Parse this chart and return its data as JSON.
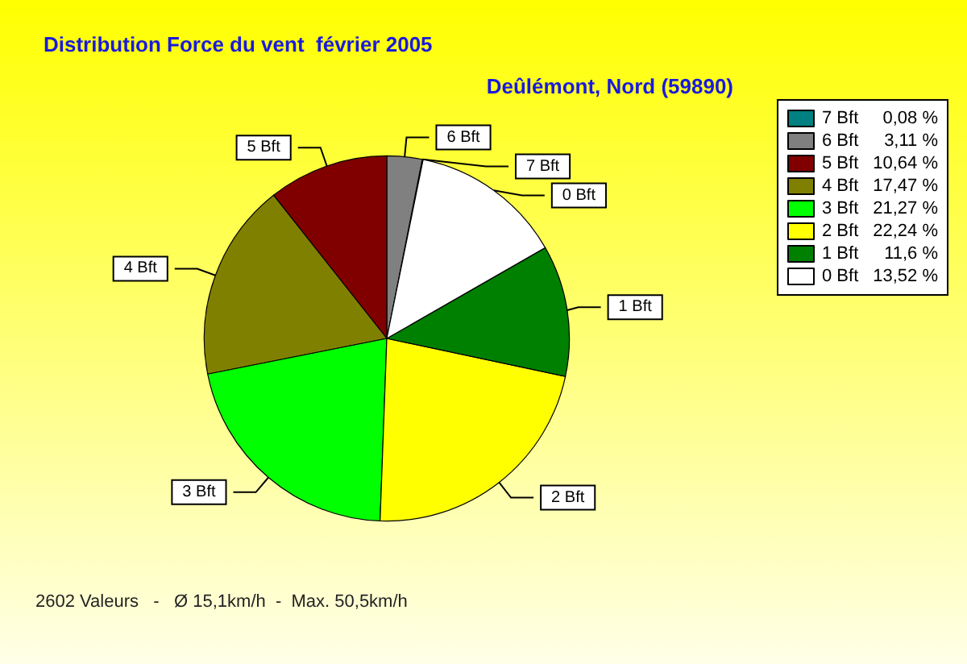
{
  "chart_data": {
    "type": "pie",
    "title": "Distribution Force du vent  février 2005",
    "subtitle": "Deûlémont, Nord (59890)",
    "categories": [
      "7 Bft",
      "6 Bft",
      "5 Bft",
      "4 Bft",
      "3 Bft",
      "2 Bft",
      "1 Bft",
      "0 Bft"
    ],
    "values": [
      0.08,
      3.11,
      10.64,
      17.47,
      21.27,
      22.24,
      11.6,
      13.52
    ],
    "value_labels": [
      "0,08 %",
      "3,11 %",
      "10,64 %",
      "17,47 %",
      "21,27 %",
      "22,24 %",
      "11,6 %",
      "13,52 %"
    ],
    "colors": [
      "#008080",
      "#808080",
      "#800000",
      "#808000",
      "#00ff00",
      "#ffff00",
      "#008000",
      "#ffffff"
    ],
    "legend": "top right",
    "annotations": [
      "2602 Valeurs   -   Ø 15,1km/h  -  Max. 50,5km/h"
    ]
  }
}
